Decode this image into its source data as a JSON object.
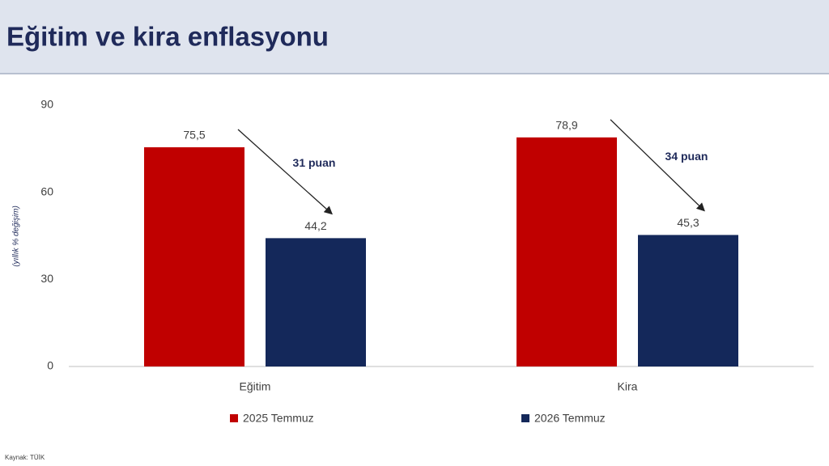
{
  "chart_data": {
    "type": "bar",
    "title": "Eğitim ve kira enflasyonu",
    "y_label": "(yıllık % değişim)",
    "categories": [
      "Eğitim",
      "Kira"
    ],
    "series": [
      {
        "name": "2025 Temmuz",
        "color": "#c00000",
        "values": [
          75.5,
          78.9
        ],
        "value_labels": [
          "75,5",
          "78,9"
        ]
      },
      {
        "name": "2026 Temmuz",
        "color": "#14285a",
        "values": [
          44.2,
          45.3
        ],
        "value_labels": [
          "44,2",
          "45,3"
        ]
      }
    ],
    "annotations": [
      "31 puan",
      "34 puan"
    ],
    "ylim": [
      0,
      90
    ],
    "yticks": [
      0,
      30,
      60,
      90
    ],
    "source": "Kaynak: TÜİK"
  }
}
